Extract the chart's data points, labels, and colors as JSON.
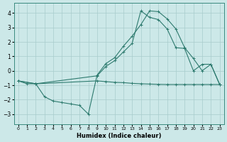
{
  "xlabel": "Humidex (Indice chaleur)",
  "ylabel": "",
  "background_color": "#cce8e8",
  "line_color": "#2d7a6e",
  "xlim": [
    -0.5,
    23.5
  ],
  "ylim": [
    -3.7,
    4.7
  ],
  "yticks": [
    -3,
    -2,
    -1,
    0,
    1,
    2,
    3,
    4
  ],
  "xticks": [
    0,
    1,
    2,
    3,
    4,
    5,
    6,
    7,
    8,
    9,
    10,
    11,
    12,
    13,
    14,
    15,
    16,
    17,
    18,
    19,
    20,
    21,
    22,
    23
  ],
  "line1_x": [
    0,
    1,
    2,
    3,
    4,
    5,
    6,
    7,
    8,
    9,
    10,
    11,
    12,
    13,
    14,
    15,
    16,
    17,
    18,
    19,
    20,
    21,
    22,
    23
  ],
  "line1_y": [
    -0.7,
    -0.9,
    -0.9,
    -1.8,
    -2.1,
    -2.2,
    -2.3,
    -2.4,
    -3.0,
    -0.3,
    0.5,
    0.9,
    1.7,
    2.4,
    3.2,
    4.15,
    4.1,
    3.6,
    2.9,
    1.6,
    0.85,
    0.0,
    0.45,
    -0.95
  ],
  "line2_x": [
    0,
    2,
    9,
    10,
    11,
    12,
    13,
    14,
    15,
    16,
    17,
    18,
    19,
    20,
    21,
    22,
    23
  ],
  "line2_y": [
    -0.7,
    -0.9,
    -0.35,
    0.3,
    0.7,
    1.3,
    1.9,
    4.15,
    3.7,
    3.55,
    2.9,
    1.6,
    1.55,
    0.0,
    0.45,
    0.45,
    -0.95
  ],
  "line3_x": [
    0,
    2,
    9,
    10,
    11,
    12,
    13,
    14,
    15,
    16,
    17,
    18,
    19,
    20,
    21,
    22,
    23
  ],
  "line3_y": [
    -0.7,
    -0.9,
    -0.7,
    -0.75,
    -0.8,
    -0.82,
    -0.87,
    -0.9,
    -0.92,
    -0.94,
    -0.95,
    -0.95,
    -0.95,
    -0.95,
    -0.95,
    -0.95,
    -0.95
  ]
}
